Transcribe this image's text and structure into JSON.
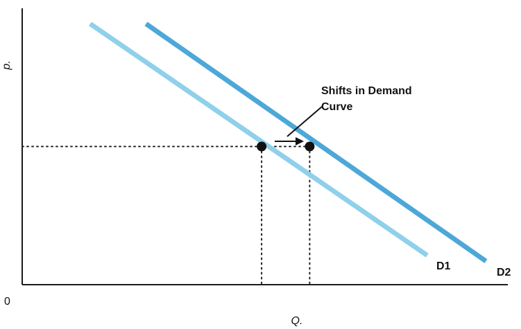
{
  "chart_data": {
    "type": "line",
    "title": "",
    "xlabel": "Q.",
    "ylabel": "p.",
    "origin_label": "0",
    "xlim": [
      0,
      100
    ],
    "ylim": [
      0,
      100
    ],
    "grid": false,
    "legend": "none",
    "series": [
      {
        "name": "D1",
        "color": "#8fd0eb",
        "x": [
          14,
          83.4
        ],
        "y": [
          94.4,
          10.6
        ]
      },
      {
        "name": "D2",
        "color": "#4da8d8",
        "x": [
          25.5,
          95.5
        ],
        "y": [
          94.4,
          8.5
        ]
      }
    ],
    "points": [
      {
        "x": 49.3,
        "y": 50
      },
      {
        "x": 59.2,
        "y": 50
      }
    ],
    "annotations": [
      {
        "text": "Shifts in Demand Curve",
        "lines": [
          "Shifts in Demand",
          "Curve"
        ]
      }
    ]
  }
}
